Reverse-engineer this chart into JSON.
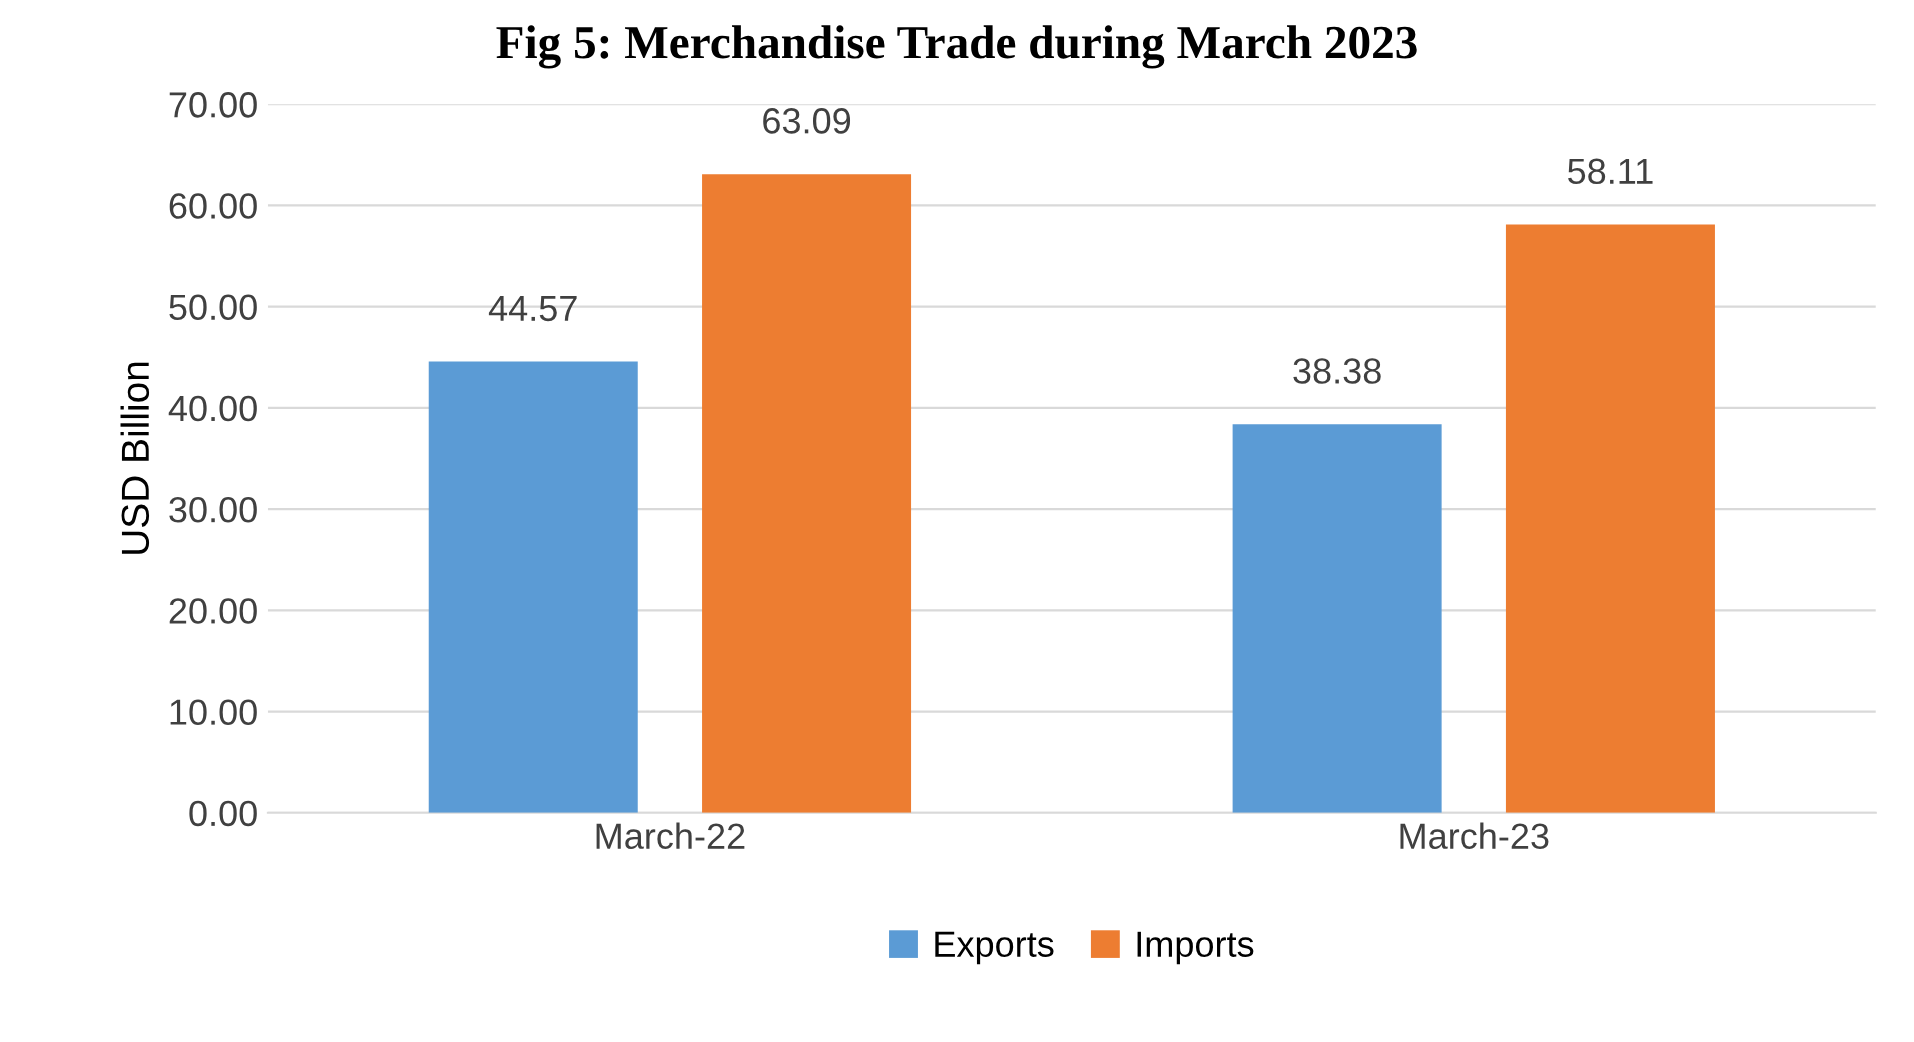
{
  "chart_data": {
    "type": "bar",
    "title": "Fig 5: Merchandise Trade during March 2023",
    "ylabel": "USD Billion",
    "categories": [
      "March-22",
      "March-23"
    ],
    "series": [
      {
        "name": "Exports",
        "color": "#5b9bd5",
        "values": [
          44.57,
          38.38
        ]
      },
      {
        "name": "Imports",
        "color": "#ed7d31",
        "values": [
          63.09,
          58.11
        ]
      }
    ],
    "ylim": [
      0,
      70
    ],
    "yticks": [
      {
        "value": 0,
        "label": "0.00"
      },
      {
        "value": 10,
        "label": "10.00"
      },
      {
        "value": 20,
        "label": "20.00"
      },
      {
        "value": 30,
        "label": "30.00"
      },
      {
        "value": 40,
        "label": "40.00"
      },
      {
        "value": 50,
        "label": "50.00"
      },
      {
        "value": 60,
        "label": "60.00"
      },
      {
        "value": 70,
        "label": "70.00"
      }
    ],
    "grid": "y",
    "legend": "bottom",
    "data_labels": true
  }
}
